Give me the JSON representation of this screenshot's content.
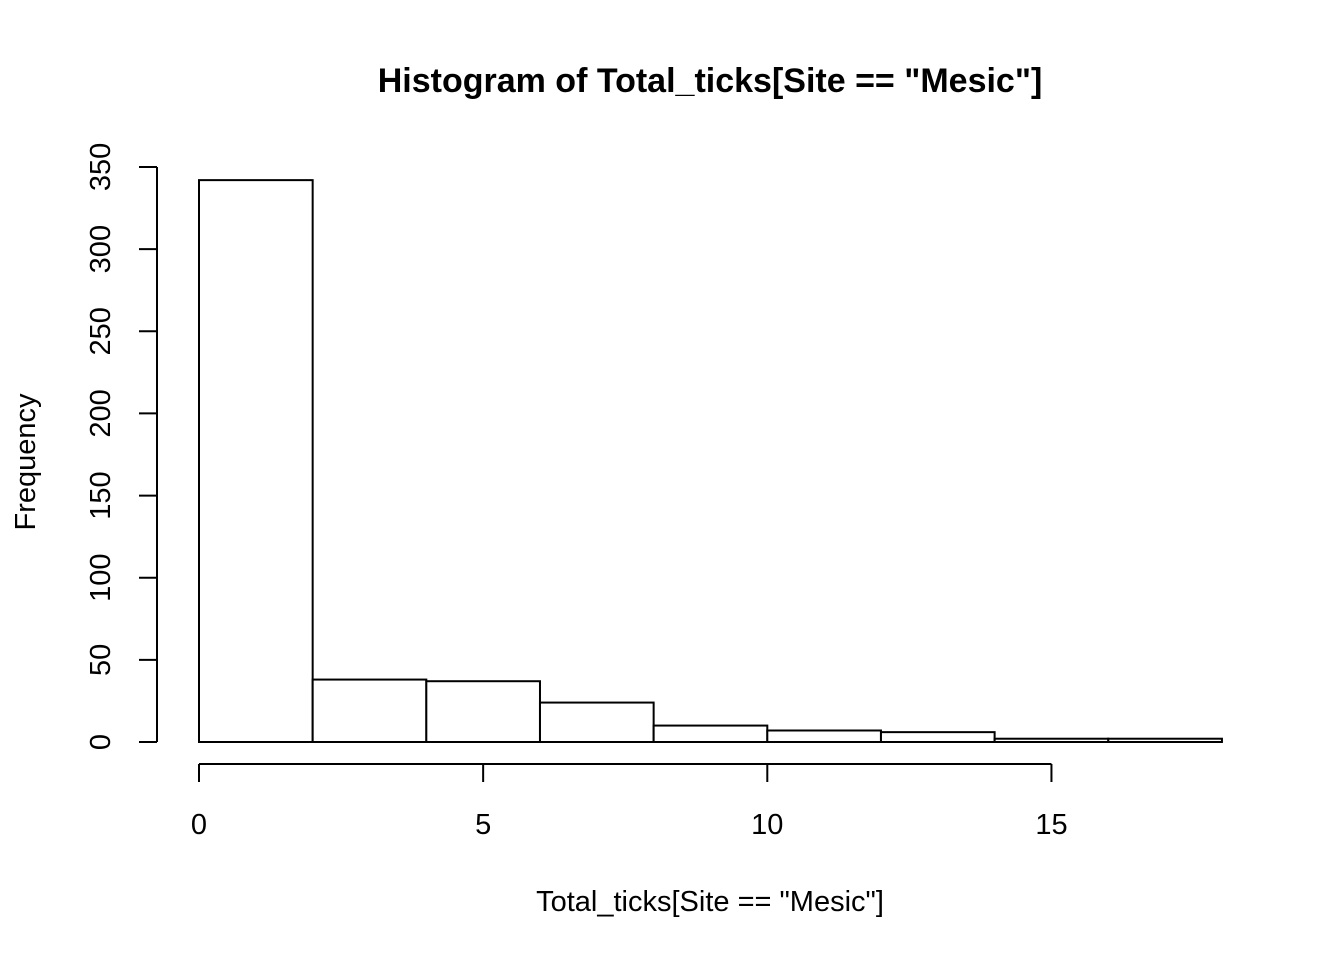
{
  "chart_data": {
    "type": "bar",
    "title": "Histogram of Total_ticks[Site == \"Mesic\"]",
    "xlabel": "Total_ticks[Site == \"Mesic\"]",
    "ylabel": "Frequency",
    "bins": [
      {
        "from": 0,
        "to": 2,
        "count": 342
      },
      {
        "from": 2,
        "to": 4,
        "count": 38
      },
      {
        "from": 4,
        "to": 6,
        "count": 37
      },
      {
        "from": 6,
        "to": 8,
        "count": 24
      },
      {
        "from": 8,
        "to": 10,
        "count": 10
      },
      {
        "from": 10,
        "to": 12,
        "count": 7
      },
      {
        "from": 12,
        "to": 14,
        "count": 6
      },
      {
        "from": 14,
        "to": 16,
        "count": 2
      },
      {
        "from": 16,
        "to": 18,
        "count": 2
      }
    ],
    "xticks": [
      0,
      5,
      10,
      15
    ],
    "yticks": [
      0,
      50,
      100,
      150,
      200,
      250,
      300,
      350
    ],
    "xlim": [
      0,
      18
    ],
    "ylim": [
      0,
      350
    ],
    "grid": false,
    "colors": {
      "bar_fill": "#ffffff",
      "bar_stroke": "#000000"
    }
  }
}
